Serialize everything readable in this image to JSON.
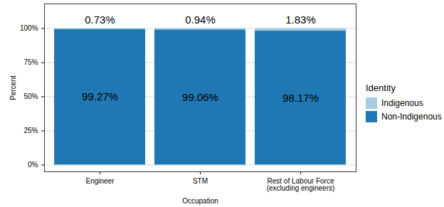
{
  "chart_data": {
    "type": "bar",
    "stacked": true,
    "x_label": "Occupation",
    "y_label": "Percent",
    "legend_title": "Identity",
    "legend": "right",
    "grid": true,
    "data_labels": true,
    "categories": [
      "Engineer",
      "STM",
      "Rest of Labour Force\n(excluding engineers)"
    ],
    "series": [
      {
        "name": "Indigenous",
        "color": "#a6cee3",
        "values": [
          0.73,
          0.94,
          1.83
        ],
        "value_labels": [
          "0.73%",
          "0.94%",
          "1.83%"
        ]
      },
      {
        "name": "Non-Indigenous",
        "color": "#1f78b4",
        "values": [
          99.27,
          99.06,
          98.17
        ],
        "value_labels": [
          "99.27%",
          "99.06%",
          "98.17%"
        ]
      }
    ],
    "ylim": [
      -5,
      118
    ],
    "yticks": [
      {
        "value": 0,
        "label": "0%"
      },
      {
        "value": 25,
        "label": "25%"
      },
      {
        "value": 50,
        "label": "50%"
      },
      {
        "value": 75,
        "label": "75%"
      },
      {
        "value": 100,
        "label": "100%"
      }
    ]
  }
}
